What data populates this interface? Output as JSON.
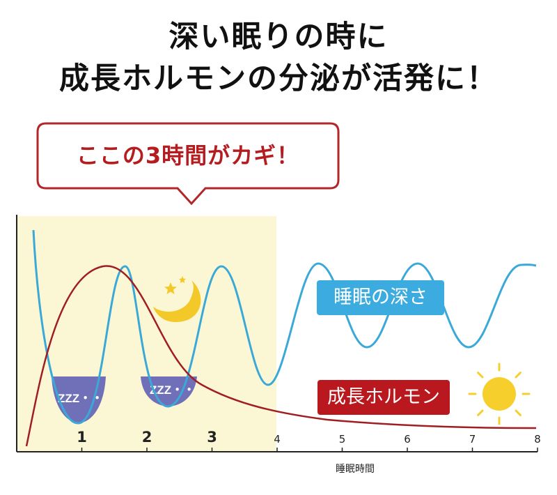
{
  "title": {
    "line1": "深い眠りの時に",
    "line2": "成長ホルモンの分泌が活発に！"
  },
  "callout": {
    "text": "ここの3時間がカギ！"
  },
  "chart": {
    "x_axis_label": "睡眠時間",
    "x_ticks": [
      "1",
      "2",
      "3",
      "4",
      "5",
      "6",
      "7",
      "8"
    ],
    "x_ticks_bold": [
      "1",
      "2",
      "3"
    ],
    "highlight_range_hours": [
      0,
      4
    ],
    "sleep_depth_label": "睡眠の深さ",
    "hormone_label": "成長ホルモン",
    "deep_sleep_marker": "ZZZ・・",
    "colors": {
      "highlight": "#fbf7d4",
      "sleep_curve": "#3aa9d8",
      "hormone_curve": "#a01d22",
      "deep_sleep_fill": "#6f70b8",
      "axis": "#222222",
      "moon": "#f3c92a",
      "sun": "#f6cf2c"
    },
    "icons": [
      "moon-icon",
      "star-icon",
      "sun-icon"
    ]
  }
}
